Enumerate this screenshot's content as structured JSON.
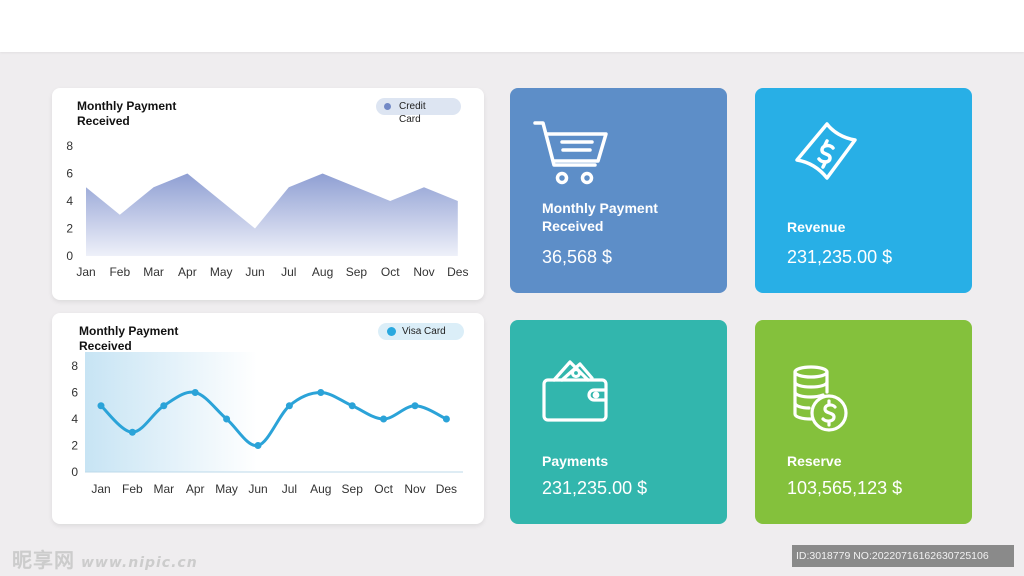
{
  "charts": [
    {
      "title": "Monthly Payment Received",
      "legend": "Credit Card",
      "legend_color": "#7289c6",
      "fill_top": "#8f9fd3",
      "fill_bottom": "#eef0f9"
    },
    {
      "title": "Monthly Payment Received",
      "legend": "Visa Card",
      "legend_color": "#29a8df",
      "line_color": "#2ba3d8"
    }
  ],
  "chart_data": [
    {
      "type": "area",
      "title": "Monthly Payment Received",
      "categories": [
        "Jan",
        "Feb",
        "Mar",
        "Apr",
        "May",
        "Jun",
        "Jul",
        "Aug",
        "Sep",
        "Oct",
        "Nov",
        "Des"
      ],
      "series": [
        {
          "name": "Credit Card",
          "values": [
            5,
            3,
            5,
            6,
            4,
            2,
            5,
            6,
            5,
            4,
            5,
            4
          ]
        }
      ],
      "yticks": [
        0,
        2,
        4,
        6,
        8
      ],
      "ylim": [
        0,
        8
      ],
      "grid": false,
      "legend_position": "top-right"
    },
    {
      "type": "line",
      "title": "Monthly Payment Received",
      "categories": [
        "Jan",
        "Feb",
        "Mar",
        "Apr",
        "May",
        "Jun",
        "Jul",
        "Aug",
        "Sep",
        "Oct",
        "Nov",
        "Des"
      ],
      "series": [
        {
          "name": "Visa Card",
          "values": [
            5,
            3,
            5,
            6,
            4,
            2,
            5,
            6,
            5,
            4,
            5,
            4
          ]
        }
      ],
      "yticks": [
        0,
        2,
        4,
        6,
        8
      ],
      "ylim": [
        0,
        8
      ],
      "grid": false,
      "legend_position": "top-right"
    }
  ],
  "tiles": [
    {
      "title": "Monthly Payment Received",
      "value": "36,568 $",
      "icon": "cart-icon",
      "color": "#5d8ec8"
    },
    {
      "title": "Revenue",
      "value": "231,235.00 $",
      "icon": "money-bill-icon",
      "color": "#28afe6"
    },
    {
      "title": "Payments",
      "value": "231,235.00 $",
      "icon": "wallet-icon",
      "color": "#32b6ad"
    },
    {
      "title": "Reserve",
      "value": "103,565,123 $",
      "icon": "coins-icon",
      "color": "#84c13c"
    }
  ],
  "watermark": {
    "logo": "昵享网",
    "url": "www.nipic.cn",
    "id_text": "ID:3018779 NO:20220716162630725106"
  }
}
